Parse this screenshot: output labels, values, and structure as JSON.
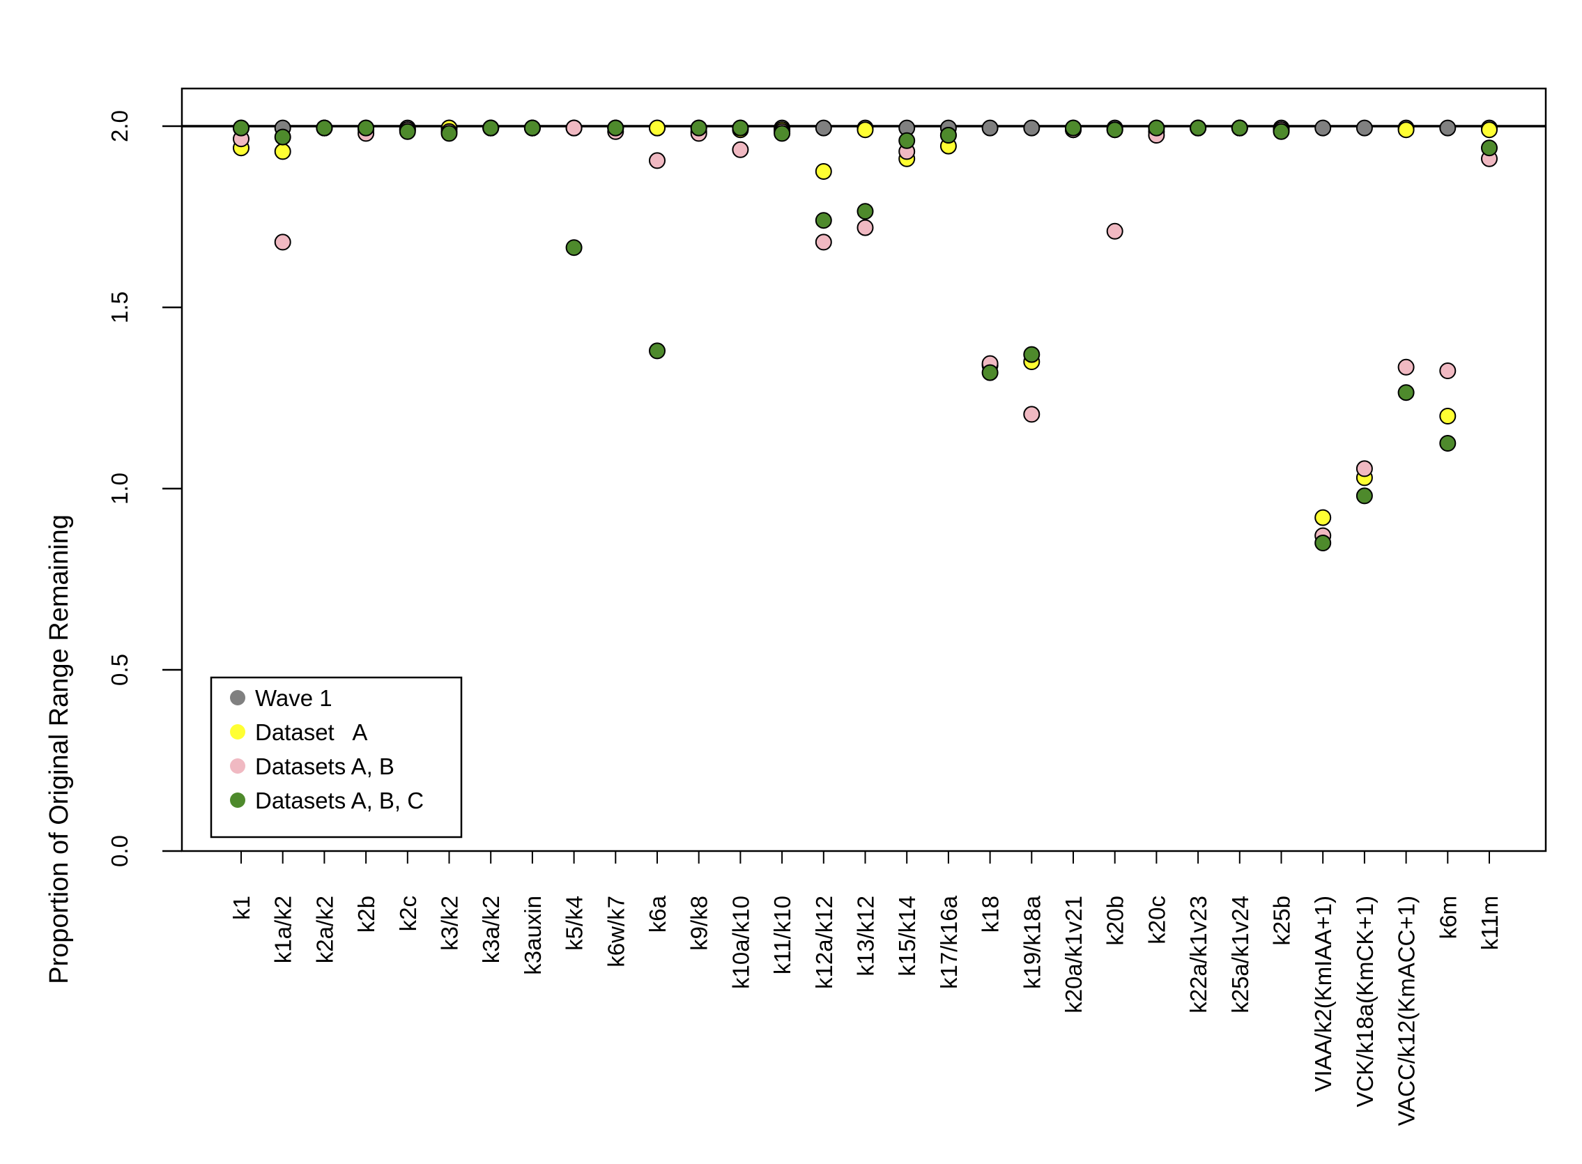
{
  "chart_data": {
    "type": "scatter",
    "title": "",
    "xlabel": "",
    "ylabel": "Proportion of Original Range Remaining",
    "ylim": [
      0,
      2.1
    ],
    "yticks": [
      0.0,
      0.5,
      1.0,
      1.5,
      2.0
    ],
    "ytick_labels": [
      "0.0",
      "0.5",
      "1.0",
      "1.5",
      "2.0"
    ],
    "reference_line": 2.0,
    "grid": false,
    "legend_position": "bottom-left",
    "categories": [
      "k1",
      "k1a/k2",
      "k2a/k2",
      "k2b",
      "k2c",
      "k3/k2",
      "k3a/k2",
      "k3auxin",
      "k5/k4",
      "k6w/k7",
      "k6a",
      "k9/k8",
      "k10a/k10",
      "k11/k10",
      "k12a/k12",
      "k13/k12",
      "k15/k14",
      "k17/k16a",
      "k18",
      "k19/k18a",
      "k20a/k1v21",
      "k20b",
      "k20c",
      "k22a/k1v23",
      "k25a/k1v24",
      "k25b",
      "VIAA/k2(KmIAA+1)",
      "VCK/k18a(KmCK+1)",
      "VACC/k12(KmACC+1)",
      "k6m",
      "k11m"
    ],
    "series": [
      {
        "name": "Wave 1",
        "color": "#808080",
        "values": [
          1.995,
          1.995,
          1.995,
          1.995,
          1.995,
          1.995,
          1.995,
          1.995,
          1.995,
          1.995,
          1.995,
          1.995,
          1.995,
          1.995,
          1.995,
          1.995,
          1.995,
          1.995,
          1.995,
          1.995,
          1.995,
          1.995,
          1.995,
          1.995,
          1.995,
          1.995,
          1.995,
          1.995,
          1.995,
          1.995,
          1.995
        ]
      },
      {
        "name": "Dataset   A",
        "color": "#ffff33",
        "values": [
          1.94,
          1.93,
          1.995,
          1.99,
          1.99,
          1.995,
          1.995,
          1.995,
          1.995,
          1.995,
          1.995,
          1.985,
          1.99,
          1.99,
          1.875,
          1.99,
          1.91,
          1.945,
          1.34,
          1.35,
          1.99,
          1.99,
          1.985,
          1.995,
          1.995,
          1.99,
          0.92,
          1.03,
          1.99,
          1.2,
          1.99
        ]
      },
      {
        "name": "Datasets A, B",
        "color": "#f0b9c2",
        "values": [
          1.965,
          1.68,
          1.995,
          1.98,
          1.99,
          1.985,
          1.995,
          1.995,
          1.995,
          1.985,
          1.905,
          1.98,
          1.935,
          1.985,
          1.68,
          1.72,
          1.93,
          1.975,
          1.345,
          1.205,
          1.99,
          1.71,
          1.975,
          1.995,
          1.995,
          1.99,
          0.87,
          1.055,
          1.335,
          1.325,
          1.91
        ]
      },
      {
        "name": "Datasets A, B, C",
        "color": "#4e8a2c",
        "values": [
          1.995,
          1.97,
          1.995,
          1.995,
          1.985,
          1.98,
          1.995,
          1.995,
          1.665,
          1.995,
          1.38,
          1.995,
          1.995,
          1.98,
          1.74,
          1.765,
          1.96,
          1.975,
          1.32,
          1.37,
          1.995,
          1.99,
          1.995,
          1.995,
          1.995,
          1.985,
          0.85,
          0.98,
          1.265,
          1.125,
          1.94
        ]
      }
    ]
  }
}
